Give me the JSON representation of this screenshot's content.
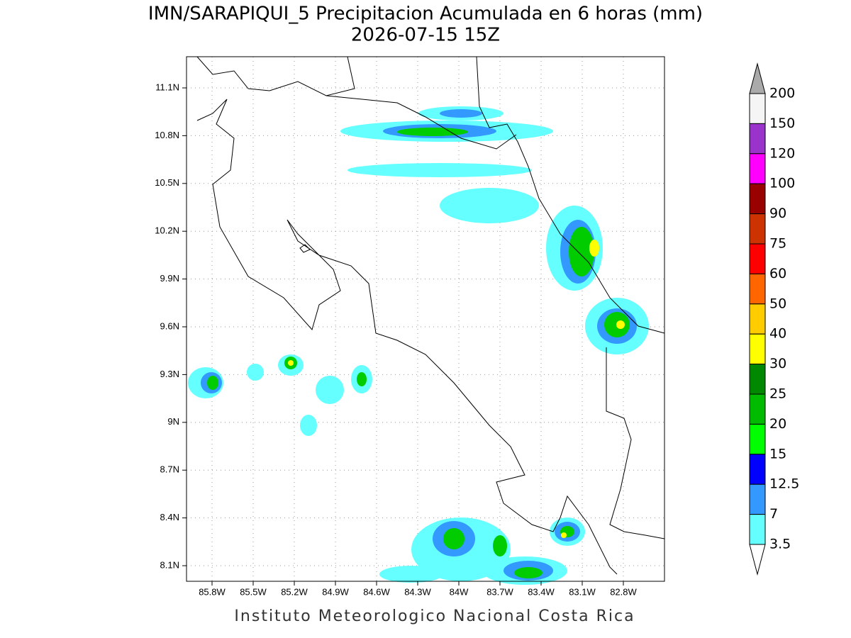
{
  "title": "IMN/SARAPIQUI_5 Precipitacion Acumulada en 6 horas (mm)",
  "subtitle": "2026-07-15 15Z",
  "footer": "Instituto Meteorologico Nacional Costa Rica",
  "map": {
    "lon_ticks": [
      "85.8W",
      "85.5W",
      "85.2W",
      "84.9W",
      "84.6W",
      "84.3W",
      "84W",
      "83.7W",
      "83.4W",
      "83.1W",
      "82.8W"
    ],
    "lat_ticks": [
      "11.1N",
      "10.8N",
      "10.5N",
      "10.2N",
      "9.9N",
      "9.6N",
      "9.3N",
      "9N",
      "8.7N",
      "8.4N",
      "8.1N"
    ]
  },
  "colorbar": {
    "levels": [
      200,
      150,
      120,
      100,
      90,
      75,
      60,
      50,
      40,
      30,
      25,
      20,
      15,
      12.5,
      7,
      3.5
    ],
    "colors": [
      "#f5f5f5",
      "#9933cc",
      "#ff00ff",
      "#990000",
      "#cc3300",
      "#ff0000",
      "#ff6600",
      "#ffcc00",
      "#ffff00",
      "#008800",
      "#00bb00",
      "#00ff00",
      "#0000ff",
      "#3399ff",
      "#66ffff"
    ],
    "over_color": "#aaaaaa",
    "under_color": "#ffffff"
  }
}
